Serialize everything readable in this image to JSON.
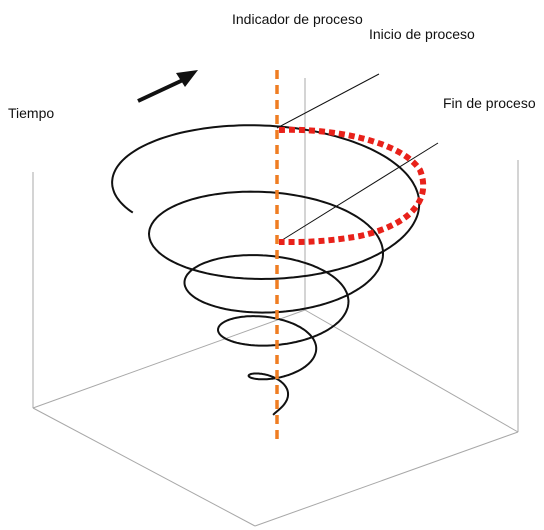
{
  "labels": {
    "process_indicator": "Indicador de proceso",
    "process_start": "Inicio de proceso",
    "process_end": "Fin de proceso",
    "time": "Tiempo"
  },
  "colors": {
    "spiral": "#111111",
    "box": "#a8a8a8",
    "indicator": "#ef7d22",
    "process_arc": "#e8211a",
    "arrow": "#111111"
  },
  "icons": {
    "time_arrow": "arrow-up-right-icon"
  }
}
